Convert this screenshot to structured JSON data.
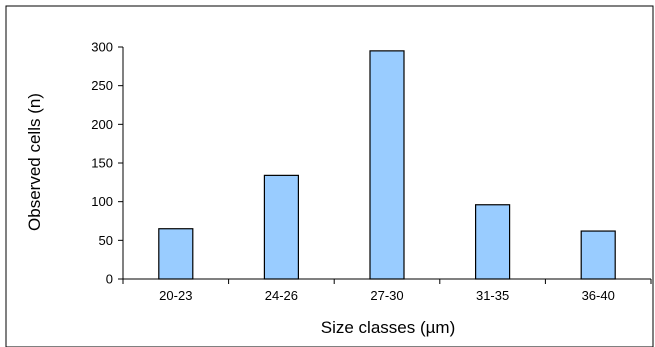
{
  "chart_data": {
    "type": "bar",
    "categories": [
      "20-23",
      "24-26",
      "27-30",
      "31-35",
      "36-40"
    ],
    "values": [
      65,
      134,
      295,
      96,
      62
    ],
    "xlabel": "Size classes (µm)",
    "ylabel": "Observed cells (n)",
    "ylim": [
      0,
      300
    ],
    "yticks": [
      0,
      50,
      100,
      150,
      200,
      250,
      300
    ],
    "grid": false,
    "legend": "none",
    "colors": {
      "bar_fill": "#99CCFF",
      "bar_stroke": "#000000",
      "axis": "#000000",
      "frame": "#000000"
    }
  }
}
